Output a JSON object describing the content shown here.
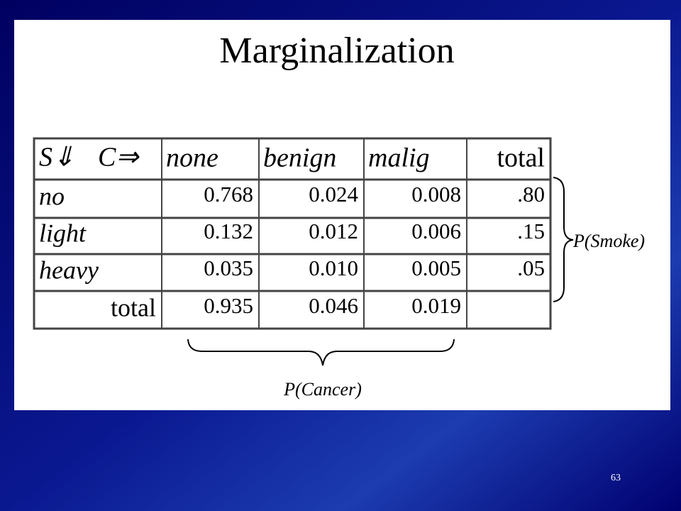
{
  "slide": {
    "title": "Marginalization",
    "page_number": "63"
  },
  "table": {
    "corner": {
      "row_var": "S⇓",
      "col_var": "C⇒"
    },
    "header": [
      "none",
      "benign",
      "malig",
      "total"
    ],
    "rows": [
      [
        "no",
        "0.768",
        "0.024",
        "0.008",
        ".80"
      ],
      [
        "light",
        "0.132",
        "0.012",
        "0.006",
        ".15"
      ],
      [
        "heavy",
        "0.035",
        "0.010",
        "0.005",
        ".05"
      ],
      [
        "total",
        "0.935",
        "0.046",
        "0.019"
      ]
    ]
  },
  "annotations": {
    "row_margin": "P(Smoke)",
    "column_margin": "P(Cancer)"
  }
}
